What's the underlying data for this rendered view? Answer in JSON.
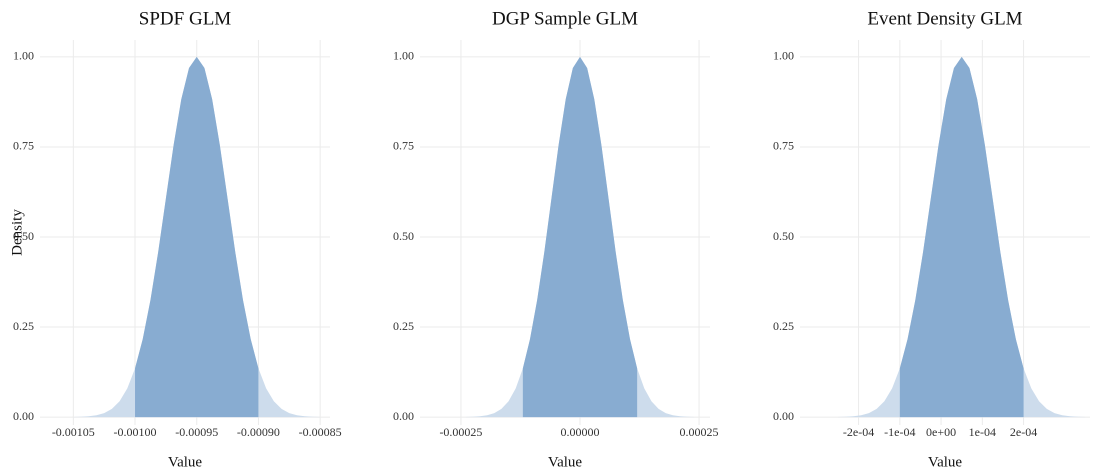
{
  "chart_data": [
    {
      "type": "area",
      "title": "SPDF GLM",
      "x_label": "Value",
      "y_label": "Density",
      "color": "#88acd1",
      "tail_color": "#cddcec",
      "x": [
        -0.00105,
        -0.00104375,
        -0.0010375,
        -0.00103125,
        -0.001025,
        -0.00101875,
        -0.0010125,
        -0.00100625,
        -0.001,
        -0.00099375,
        -0.0009875,
        -0.00098125,
        -0.000975,
        -0.00096875,
        -0.0009625,
        -0.00095625,
        -0.00095,
        -0.00094375,
        -0.0009375,
        -0.00093125,
        -0.000925,
        -0.00091875,
        -0.0009125,
        -0.00090625,
        -0.0009,
        -0.00089375,
        -0.0008875,
        -0.00088125,
        -0.000875,
        -0.00086875,
        -0.0008625,
        -0.00085625,
        -0.00085
      ],
      "values": [
        0.0003,
        0.0009,
        0.0022,
        0.0051,
        0.0111,
        0.0228,
        0.0439,
        0.0796,
        0.1353,
        0.2163,
        0.3247,
        0.4578,
        0.6065,
        0.7548,
        0.8825,
        0.9692,
        1,
        0.9692,
        0.8825,
        0.7548,
        0.6065,
        0.4578,
        0.3247,
        0.2163,
        0.1353,
        0.0796,
        0.0439,
        0.0228,
        0.0111,
        0.0051,
        0.0022,
        0.0009,
        0.0003
      ],
      "interval": [
        -0.001,
        -0.0009
      ],
      "xlim": [
        -0.001077,
        -0.000842
      ],
      "xticks": [
        {
          "value": -0.00105,
          "label": "-0.00105"
        },
        {
          "value": -0.001,
          "label": "-0.00100"
        },
        {
          "value": -0.00095,
          "label": "-0.00095"
        },
        {
          "value": -0.0009,
          "label": "-0.00090"
        },
        {
          "value": -0.00085,
          "label": "-0.00085"
        }
      ],
      "ylim": [
        -0.022,
        1.047
      ],
      "yticks": [
        {
          "value": 0,
          "label": "0.00"
        },
        {
          "value": 0.25,
          "label": "0.25"
        },
        {
          "value": 0.5,
          "label": "0.50"
        },
        {
          "value": 0.75,
          "label": "0.75"
        },
        {
          "value": 1,
          "label": "1.00"
        }
      ],
      "grid": true
    },
    {
      "type": "area",
      "title": "DGP Sample GLM",
      "x_label": "Value",
      "color": "#88acd1",
      "tail_color": "#cddcec",
      "x": [
        -0.00024,
        -0.000225,
        -0.00021,
        -0.000195,
        -0.00018,
        -0.000165,
        -0.00015,
        -0.000135,
        -0.00012,
        -0.000105,
        -9e-05,
        -7.5e-05,
        -6e-05,
        -4.5e-05,
        -3e-05,
        -1.5e-05,
        0,
        1.5e-05,
        3e-05,
        4.5e-05,
        6e-05,
        7.5e-05,
        9e-05,
        0.000105,
        0.00012,
        0.000135,
        0.00015,
        0.000165,
        0.00018,
        0.000195,
        0.00021,
        0.000225,
        0.00024
      ],
      "values": [
        0.0003,
        0.0009,
        0.0022,
        0.0051,
        0.0111,
        0.0228,
        0.0439,
        0.0796,
        0.1353,
        0.2163,
        0.3247,
        0.4578,
        0.6065,
        0.7548,
        0.8825,
        0.9692,
        1,
        0.9692,
        0.8825,
        0.7548,
        0.6065,
        0.4578,
        0.3247,
        0.2163,
        0.1353,
        0.0796,
        0.0439,
        0.0228,
        0.0111,
        0.0051,
        0.0022,
        0.0009,
        0.0003
      ],
      "interval": [
        -0.00012,
        0.00012
      ],
      "xlim": [
        -0.000336,
        0.000273
      ],
      "xticks": [
        {
          "value": -0.00025,
          "label": "-0.00025"
        },
        {
          "value": 0,
          "label": "0.00000"
        },
        {
          "value": 0.00025,
          "label": "0.00025"
        }
      ],
      "ylim": [
        -0.022,
        1.047
      ],
      "yticks": [
        {
          "value": 0,
          "label": "0.00"
        },
        {
          "value": 0.25,
          "label": "0.25"
        },
        {
          "value": 0.5,
          "label": "0.50"
        },
        {
          "value": 0.75,
          "label": "0.75"
        },
        {
          "value": 1,
          "label": "1.00"
        }
      ],
      "grid": true
    },
    {
      "type": "area",
      "title": "Event Density GLM",
      "x_label": "Value",
      "color": "#88acd1",
      "tail_color": "#cddcec",
      "x": [
        -0.00025,
        -0.00023125,
        -0.0002125,
        -0.00019375,
        -0.000175,
        -0.00015625,
        -0.0001375,
        -0.00011875,
        -0.0001,
        -8.125e-05,
        -6.25e-05,
        -4.375e-05,
        -2.5e-05,
        -6.25e-06,
        1.25e-05,
        3.125e-05,
        5e-05,
        6.875e-05,
        8.75e-05,
        0.00010625,
        0.000125,
        0.00014375,
        0.0001625,
        0.00018125,
        0.0002,
        0.00021875,
        0.0002375,
        0.00025625,
        0.000275,
        0.00029375,
        0.0003125,
        0.00033125,
        0.00035
      ],
      "values": [
        0.0003,
        0.0009,
        0.0022,
        0.0051,
        0.0111,
        0.0228,
        0.0439,
        0.0796,
        0.1353,
        0.2163,
        0.3247,
        0.4578,
        0.6065,
        0.7548,
        0.8825,
        0.9692,
        1,
        0.9692,
        0.8825,
        0.7548,
        0.6065,
        0.4578,
        0.3247,
        0.2163,
        0.1353,
        0.0796,
        0.0439,
        0.0228,
        0.0111,
        0.0051,
        0.0022,
        0.0009,
        0.0003
      ],
      "interval": [
        -0.0001,
        0.0002
      ],
      "xlim": [
        -0.000342,
        0.000361
      ],
      "xticks": [
        {
          "value": -0.0002,
          "label": "-2e-04"
        },
        {
          "value": -0.0001,
          "label": "-1e-04"
        },
        {
          "value": 0,
          "label": "0e+00"
        },
        {
          "value": 0.0001,
          "label": "1e-04"
        },
        {
          "value": 0.0002,
          "label": "2e-04"
        }
      ],
      "ylim": [
        -0.022,
        1.047
      ],
      "yticks": [
        {
          "value": 0,
          "label": "0.00"
        },
        {
          "value": 0.25,
          "label": "0.25"
        },
        {
          "value": 0.5,
          "label": "0.50"
        },
        {
          "value": 0.75,
          "label": "0.75"
        },
        {
          "value": 1,
          "label": "1.00"
        }
      ],
      "grid": true
    }
  ]
}
